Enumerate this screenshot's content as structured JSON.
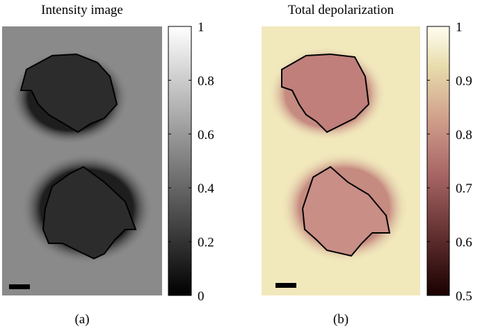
{
  "panels": [
    {
      "title": "Intensity image",
      "label": "(a)",
      "colorbar": {
        "lim": [
          0,
          1
        ],
        "ticks": [
          0,
          0.2,
          0.4,
          0.6,
          0.8,
          1
        ]
      }
    },
    {
      "title": "Total depolarization",
      "label": "(b)",
      "colorbar": {
        "lim": [
          0.5,
          1
        ],
        "ticks": [
          0.5,
          0.6,
          0.7,
          0.8,
          0.9,
          1
        ]
      }
    }
  ]
}
